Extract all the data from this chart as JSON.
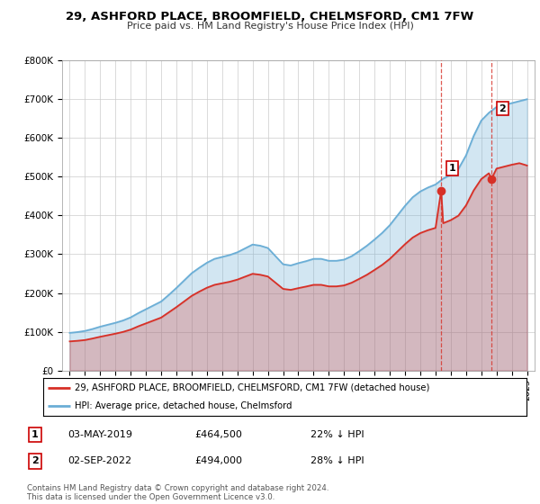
{
  "title": "29, ASHFORD PLACE, BROOMFIELD, CHELMSFORD, CM1 7FW",
  "subtitle": "Price paid vs. HM Land Registry's House Price Index (HPI)",
  "legend_line1": "29, ASHFORD PLACE, BROOMFIELD, CHELMSFORD, CM1 7FW (detached house)",
  "legend_line2": "HPI: Average price, detached house, Chelmsford",
  "annotation1_label": "1",
  "annotation1_date": "03-MAY-2019",
  "annotation1_price": "£464,500",
  "annotation1_pct": "22% ↓ HPI",
  "annotation2_label": "2",
  "annotation2_date": "02-SEP-2022",
  "annotation2_price": "£494,000",
  "annotation2_pct": "28% ↓ HPI",
  "copyright": "Contains HM Land Registry data © Crown copyright and database right 2024.\nThis data is licensed under the Open Government Licence v3.0.",
  "sale1_x": 2019.37,
  "sale1_y": 464500,
  "sale2_x": 2022.67,
  "sale2_y": 494000,
  "hpi_color": "#6baed6",
  "hpi_fill": "#c6dbef",
  "price_color": "#d73027",
  "background_color": "#ffffff",
  "grid_color": "#cccccc",
  "annotation_box_color": "#cc0000",
  "ylim": [
    0,
    800000
  ],
  "xlim": [
    1994.5,
    2025.5
  ],
  "hpi_years": [
    1995,
    1995.5,
    1996,
    1996.5,
    1997,
    1997.5,
    1998,
    1998.5,
    1999,
    1999.5,
    2000,
    2000.5,
    2001,
    2001.5,
    2002,
    2002.5,
    2003,
    2003.5,
    2004,
    2004.5,
    2005,
    2005.5,
    2006,
    2006.5,
    2007,
    2007.5,
    2008,
    2008.5,
    2009,
    2009.5,
    2010,
    2010.5,
    2011,
    2011.5,
    2012,
    2012.5,
    2013,
    2013.5,
    2014,
    2014.5,
    2015,
    2015.5,
    2016,
    2016.5,
    2017,
    2017.5,
    2018,
    2018.5,
    2019,
    2019.5,
    2020,
    2020.5,
    2021,
    2021.5,
    2022,
    2022.5,
    2023,
    2023.5,
    2024,
    2024.5,
    2025
  ],
  "hpi_values": [
    97000,
    99000,
    102000,
    107000,
    113000,
    118000,
    123000,
    129000,
    137000,
    148000,
    158000,
    168000,
    178000,
    195000,
    213000,
    232000,
    251000,
    265000,
    278000,
    288000,
    293000,
    298000,
    305000,
    315000,
    325000,
    322000,
    316000,
    295000,
    274000,
    271000,
    277000,
    282000,
    288000,
    288000,
    283000,
    283000,
    286000,
    295000,
    308000,
    322000,
    338000,
    355000,
    375000,
    400000,
    425000,
    447000,
    462000,
    472000,
    480000,
    495000,
    505000,
    520000,
    555000,
    605000,
    645000,
    665000,
    680000,
    685000,
    690000,
    695000,
    700000
  ],
  "price_years": [
    1995,
    1995.5,
    1996,
    1996.5,
    1997,
    1997.5,
    1998,
    1998.5,
    1999,
    1999.5,
    2000,
    2000.5,
    2001,
    2001.5,
    2002,
    2002.5,
    2003,
    2003.5,
    2004,
    2004.5,
    2005,
    2005.5,
    2006,
    2006.5,
    2007,
    2007.5,
    2008,
    2008.5,
    2009,
    2009.5,
    2010,
    2010.5,
    2011,
    2011.5,
    2012,
    2012.5,
    2013,
    2013.5,
    2014,
    2014.5,
    2015,
    2015.5,
    2016,
    2016.5,
    2017,
    2017.5,
    2018,
    2018.5,
    2019,
    2019.37,
    2019.5,
    2020,
    2020.5,
    2021,
    2021.5,
    2022,
    2022.5,
    2022.67,
    2023,
    2023.5,
    2024,
    2024.5,
    2025
  ],
  "price_values": [
    75000,
    76500,
    78500,
    82500,
    87000,
    91000,
    95000,
    99500,
    105500,
    114000,
    121500,
    129000,
    136500,
    150000,
    163500,
    178000,
    192500,
    203500,
    213500,
    221000,
    225000,
    229000,
    234500,
    242000,
    249500,
    247000,
    242500,
    226500,
    210500,
    208000,
    212500,
    216500,
    221000,
    221000,
    217000,
    217000,
    219500,
    226500,
    236500,
    247000,
    259500,
    272500,
    288000,
    307000,
    326000,
    343000,
    354500,
    362000,
    368000,
    464500,
    380000,
    388000,
    399500,
    426000,
    464500,
    494000,
    509000,
    494000,
    521000,
    526000,
    531000,
    535000,
    529000
  ]
}
